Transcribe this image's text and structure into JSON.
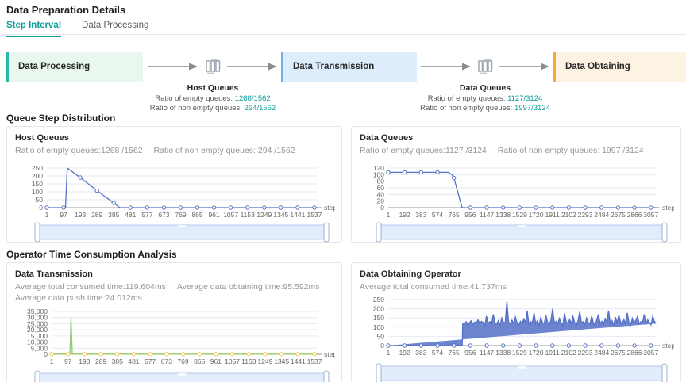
{
  "page": {
    "title": "Data Preparation Details"
  },
  "tabs": [
    {
      "label": "Step Interval",
      "active": true
    },
    {
      "label": "Data Processing",
      "active": false
    }
  ],
  "flow": {
    "stages": [
      {
        "label": "Data Processing"
      },
      {
        "label": "Data Transmission"
      },
      {
        "label": "Data Obtaining"
      }
    ],
    "queues": [
      {
        "title": "Host Queues",
        "empty_label": "Ratio of empty queues:",
        "empty_value": "1268/1562",
        "non_empty_label": "Ratio of non empty queues:",
        "non_empty_value": "294/1562"
      },
      {
        "title": "Data Queues",
        "empty_label": "Ratio of empty queues:",
        "empty_value": "1127/3124",
        "non_empty_label": "Ratio of non empty queues:",
        "non_empty_value": "1997/3124"
      }
    ]
  },
  "sections": [
    {
      "title": "Queue Step Distribution"
    },
    {
      "title": "Operator Time Consumption Analysis"
    }
  ],
  "colors": {
    "accent": "#0e9d98",
    "line_blue": "#5470c6",
    "line_yellow": "#fac858",
    "line_green": "#91cc75",
    "grid": "#e5e9f2",
    "axis_text": "#666666"
  },
  "chart_data": [
    {
      "type": "line",
      "card_title": "Host Queues",
      "subtitle_parts": [
        "Ratio of empty queues:1268 /1562",
        "Ratio of non empty queues: 294 /1562"
      ],
      "xlabel": "step",
      "xlim": [
        1,
        1560
      ],
      "ylim": [
        0,
        250
      ],
      "yticks": [
        0,
        50,
        100,
        150,
        200,
        250
      ],
      "ytick_labels": [
        "0",
        "50",
        "100",
        "150",
        "200",
        "250"
      ],
      "xticks": [
        1,
        97,
        193,
        289,
        385,
        481,
        577,
        673,
        769,
        865,
        961,
        1057,
        1153,
        1249,
        1345,
        1441,
        1537
      ],
      "series": [
        {
          "name": "queue-depth",
          "color": "#5470c6",
          "points": [
            [
              1,
              0
            ],
            [
              108,
              0
            ],
            [
              118,
              250
            ],
            [
              193,
              190
            ],
            [
              289,
              107
            ],
            [
              385,
              30
            ],
            [
              420,
              0
            ],
            [
              1560,
              0
            ]
          ],
          "markers": [
            [
              1,
              0
            ],
            [
              97,
              0
            ],
            [
              193,
              190
            ],
            [
              289,
              107
            ],
            [
              385,
              30
            ],
            [
              481,
              0
            ],
            [
              577,
              0
            ],
            [
              673,
              0
            ],
            [
              769,
              0
            ],
            [
              865,
              0
            ],
            [
              961,
              0
            ],
            [
              1057,
              0
            ],
            [
              1153,
              0
            ],
            [
              1249,
              0
            ],
            [
              1345,
              0
            ],
            [
              1441,
              0
            ],
            [
              1537,
              0
            ]
          ]
        }
      ]
    },
    {
      "type": "line",
      "card_title": "Data Queues",
      "subtitle_parts": [
        "Ratio of empty queues:1127 /3124",
        "Ratio of non empty queues: 1997 /3124"
      ],
      "xlabel": "step",
      "xlim": [
        1,
        3124
      ],
      "ylim": [
        0,
        120
      ],
      "yticks": [
        0,
        20,
        40,
        60,
        80,
        100,
        120
      ],
      "ytick_labels": [
        "0",
        "20",
        "40",
        "60",
        "80",
        "100",
        "120"
      ],
      "xticks": [
        1,
        192,
        383,
        574,
        765,
        956,
        1147,
        1338,
        1529,
        1720,
        1911,
        2102,
        2293,
        2484,
        2675,
        2866,
        3057
      ],
      "series": [
        {
          "name": "queue-depth",
          "color": "#5470c6",
          "points": [
            [
              1,
              107
            ],
            [
              383,
              107
            ],
            [
              574,
              107
            ],
            [
              700,
              107
            ],
            [
              740,
              100
            ],
            [
              765,
              90
            ],
            [
              860,
              0
            ],
            [
              3124,
              0
            ]
          ],
          "markers": [
            [
              1,
              107
            ],
            [
              192,
              107
            ],
            [
              383,
              107
            ],
            [
              574,
              107
            ],
            [
              765,
              90
            ],
            [
              956,
              0
            ],
            [
              1147,
              0
            ],
            [
              1338,
              0
            ],
            [
              1529,
              0
            ],
            [
              1720,
              0
            ],
            [
              1911,
              0
            ],
            [
              2102,
              0
            ],
            [
              2293,
              0
            ],
            [
              2484,
              0
            ],
            [
              2675,
              0
            ],
            [
              2866,
              0
            ],
            [
              3057,
              0
            ]
          ]
        }
      ]
    },
    {
      "type": "line",
      "card_title": "Data Transmission",
      "subtitle_parts": [
        "Average total consumed time:119.604ms",
        "Average data obtaining time:95.592ms"
      ],
      "subtitle2": "Average data push time:24.012ms",
      "xlabel": "step",
      "xlim": [
        1,
        1560
      ],
      "ylim": [
        0,
        35000
      ],
      "yticks": [
        0,
        5000,
        10000,
        15000,
        20000,
        25000,
        30000,
        35000
      ],
      "ytick_labels": [
        "0",
        "5,000",
        "10,000",
        "15,000",
        "20,000",
        "25,000",
        "30,000",
        "35,000"
      ],
      "xticks": [
        1,
        97,
        193,
        289,
        385,
        481,
        577,
        673,
        769,
        865,
        961,
        1057,
        1153,
        1249,
        1345,
        1441,
        1537
      ],
      "series": [
        {
          "name": "data-push-time",
          "color": "#fac858",
          "points": [
            [
              1,
              180
            ],
            [
              1560,
              180
            ]
          ],
          "markers_y": 180
        },
        {
          "name": "total-consumed-spike",
          "color": "#91cc75",
          "points": [
            [
              1,
              60
            ],
            [
              108,
              60
            ],
            [
              114,
              30500
            ],
            [
              122,
              60
            ],
            [
              1560,
              60
            ]
          ]
        }
      ]
    },
    {
      "type": "line",
      "card_title": "Data Obtaining Operator",
      "subtitle_parts": [
        "Average total consumed time:41.737ms"
      ],
      "xlabel": "step",
      "xlim": [
        1,
        3124
      ],
      "ylim": [
        0,
        250
      ],
      "yticks": [
        0,
        50,
        100,
        150,
        200,
        250
      ],
      "ytick_labels": [
        "0",
        "50",
        "100",
        "150",
        "200",
        "250"
      ],
      "xticks": [
        1,
        192,
        383,
        574,
        765,
        956,
        1147,
        1338,
        1529,
        1720,
        1911,
        2102,
        2293,
        2484,
        2675,
        2866,
        3057
      ],
      "series": [
        {
          "name": "consumed-time",
          "color": "#5470c6",
          "fill": true,
          "points": [
            [
              1,
              0
            ],
            [
              862,
              0
            ]
          ],
          "band": {
            "from": 868,
            "to": 3118
          },
          "values": [
            122,
            118,
            130,
            112,
            125,
            135,
            115,
            128,
            120,
            140,
            118,
            132,
            125,
            110,
            160,
            122,
            130,
            115,
            170,
            125,
            118,
            135,
            112,
            150,
            128,
            120,
            240,
            130,
            116,
            138,
            122,
            155,
            125,
            112,
            132,
            118,
            145,
            124,
            190,
            115,
            130,
            122,
            178,
            118,
            135,
            110,
            152,
            126,
            120,
            165,
            128,
            114,
            138,
            200,
            122,
            132,
            116,
            148,
            124,
            110,
            175,
            130,
            118,
            142,
            120,
            158,
            125,
            112,
            136,
            185,
            122,
            130,
            114,
            150,
            126,
            118,
            160,
            124,
            108,
            140,
            170,
            120,
            132,
            115,
            146,
            128,
            190,
            118,
            135,
            112,
            155,
            124,
            165,
            130,
            116,
            142,
            120,
            178,
            126,
            110,
            148,
            122,
            136,
            158,
            118,
            130,
            125,
            170,
            115,
            140,
            128,
            112,
            160,
            132,
            120
          ],
          "markers_y": 0
        }
      ]
    }
  ]
}
